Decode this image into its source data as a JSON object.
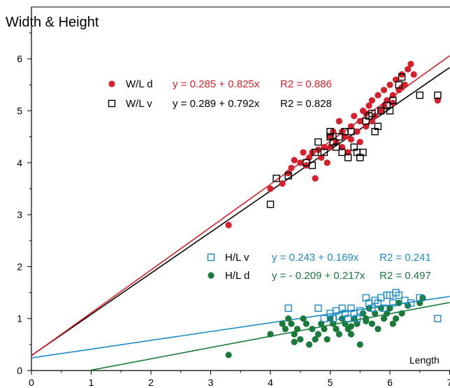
{
  "chart_data": {
    "type": "scatter",
    "title": "",
    "ylabel": "Width & Height",
    "xlabel": "Length",
    "xlim": [
      0,
      7
    ],
    "ylim": [
      0,
      6.5
    ],
    "x_ticks": [
      "0",
      "1",
      "2",
      "3",
      "4",
      "5",
      "6",
      "7"
    ],
    "y_ticks": [
      "0",
      "1",
      "2",
      "3",
      "4",
      "5",
      "6"
    ],
    "grid": false,
    "legend_position": "inside",
    "series": [
      {
        "name": "W/L d",
        "marker": "filled-circle",
        "color": "#d7202b",
        "equation": "y = 0.285 + 0.825x",
        "r2": "R2 = 0.886",
        "fit": {
          "intercept": 0.285,
          "slope": 0.825,
          "x_range": [
            0,
            7
          ]
        },
        "points": [
          [
            3.3,
            2.8
          ],
          [
            4.0,
            3.5
          ],
          [
            4.2,
            3.6
          ],
          [
            4.3,
            3.8
          ],
          [
            4.35,
            3.9
          ],
          [
            4.5,
            4.0
          ],
          [
            4.55,
            4.2
          ],
          [
            4.6,
            3.95
          ],
          [
            4.65,
            4.1
          ],
          [
            4.7,
            4.2
          ],
          [
            4.75,
            3.7
          ],
          [
            4.85,
            4.1
          ],
          [
            4.9,
            4.3
          ],
          [
            4.95,
            4.0
          ],
          [
            5.0,
            4.3
          ],
          [
            5.0,
            4.5
          ],
          [
            5.05,
            4.6
          ],
          [
            5.1,
            4.4
          ],
          [
            5.15,
            4.8
          ],
          [
            5.2,
            4.6
          ],
          [
            5.25,
            4.5
          ],
          [
            5.3,
            4.2
          ],
          [
            5.35,
            4.7
          ],
          [
            5.4,
            4.9
          ],
          [
            5.45,
            4.6
          ],
          [
            5.5,
            4.8
          ],
          [
            5.55,
            5.0
          ],
          [
            5.6,
            4.7
          ],
          [
            5.65,
            5.1
          ],
          [
            5.7,
            5.2
          ],
          [
            5.75,
            4.9
          ],
          [
            5.8,
            5.3
          ],
          [
            5.85,
            5.0
          ],
          [
            5.9,
            5.4
          ],
          [
            5.95,
            5.2
          ],
          [
            6.0,
            5.5
          ],
          [
            6.05,
            5.3
          ],
          [
            6.1,
            5.6
          ],
          [
            6.15,
            5.4
          ],
          [
            6.2,
            5.7
          ],
          [
            6.25,
            5.5
          ],
          [
            6.3,
            5.8
          ],
          [
            6.35,
            5.9
          ],
          [
            6.4,
            5.7
          ],
          [
            6.8,
            5.2
          ],
          [
            5.2,
            4.3
          ],
          [
            5.5,
            4.4
          ],
          [
            5.7,
            4.8
          ],
          [
            5.9,
            5.1
          ],
          [
            4.4,
            4.05
          ],
          [
            4.8,
            4.25
          ],
          [
            5.35,
            4.45
          ],
          [
            5.6,
            4.95
          ],
          [
            6.05,
            5.15
          ],
          [
            6.2,
            5.45
          ]
        ]
      },
      {
        "name": "W/L v",
        "marker": "open-square",
        "color": "#000000",
        "equation": "y = 0.289 + 0.792x",
        "r2": "R2 = 0.828",
        "fit": {
          "intercept": 0.289,
          "slope": 0.792,
          "x_range": [
            0,
            7
          ]
        },
        "points": [
          [
            4.0,
            3.2
          ],
          [
            4.1,
            3.7
          ],
          [
            4.3,
            3.75
          ],
          [
            4.6,
            4.0
          ],
          [
            4.7,
            3.95
          ],
          [
            4.75,
            4.2
          ],
          [
            4.8,
            4.4
          ],
          [
            4.9,
            4.2
          ],
          [
            5.0,
            4.6
          ],
          [
            5.05,
            4.4
          ],
          [
            5.1,
            4.3
          ],
          [
            5.15,
            4.5
          ],
          [
            5.2,
            4.2
          ],
          [
            5.25,
            4.6
          ],
          [
            5.3,
            4.1
          ],
          [
            5.4,
            4.3
          ],
          [
            5.45,
            4.2
          ],
          [
            5.5,
            4.1
          ],
          [
            5.55,
            4.2
          ],
          [
            5.6,
            4.8
          ],
          [
            5.65,
            4.9
          ],
          [
            5.75,
            4.6
          ],
          [
            5.8,
            4.7
          ],
          [
            5.85,
            5.0
          ],
          [
            5.95,
            5.1
          ],
          [
            6.05,
            5.2
          ],
          [
            6.15,
            5.5
          ],
          [
            6.2,
            5.65
          ],
          [
            6.5,
            5.3
          ],
          [
            6.8,
            5.3
          ],
          [
            5.0,
            4.5
          ],
          [
            5.35,
            4.6
          ],
          [
            5.7,
            4.95
          ],
          [
            6.0,
            5.0
          ]
        ]
      },
      {
        "name": "H/L v",
        "marker": "open-square",
        "color": "#1b8bc4",
        "equation": "y =  0.243 + 0.169x",
        "r2": "R2 = 0.241",
        "fit": {
          "intercept": 0.243,
          "slope": 0.169,
          "x_range": [
            0,
            7
          ]
        },
        "points": [
          [
            4.3,
            1.2
          ],
          [
            4.8,
            1.2
          ],
          [
            4.9,
            1.0
          ],
          [
            5.0,
            1.1
          ],
          [
            5.05,
            1.0
          ],
          [
            5.1,
            1.15
          ],
          [
            5.15,
            1.05
          ],
          [
            5.2,
            1.2
          ],
          [
            5.25,
            1.1
          ],
          [
            5.3,
            1.0
          ],
          [
            5.35,
            1.2
          ],
          [
            5.4,
            1.1
          ],
          [
            5.45,
            1.0
          ],
          [
            5.5,
            1.15
          ],
          [
            5.6,
            1.4
          ],
          [
            5.65,
            1.3
          ],
          [
            5.7,
            1.2
          ],
          [
            5.75,
            1.35
          ],
          [
            5.8,
            1.3
          ],
          [
            5.85,
            1.4
          ],
          [
            5.9,
            1.2
          ],
          [
            5.95,
            1.45
          ],
          [
            6.0,
            1.45
          ],
          [
            6.05,
            1.3
          ],
          [
            6.1,
            1.5
          ],
          [
            6.15,
            1.45
          ],
          [
            6.25,
            1.35
          ],
          [
            6.35,
            1.3
          ],
          [
            6.5,
            1.4
          ],
          [
            6.8,
            1.0
          ]
        ]
      },
      {
        "name": "H/L d",
        "marker": "filled-circle",
        "color": "#1a7a3a",
        "equation": "y = - 0.209 + 0.217x",
        "r2": "R2 = 0.497",
        "fit": {
          "intercept": -0.209,
          "slope": 0.217,
          "x_range": [
            0.963,
            7
          ]
        },
        "points": [
          [
            3.3,
            0.3
          ],
          [
            4.0,
            0.7
          ],
          [
            4.2,
            0.9
          ],
          [
            4.25,
            0.8
          ],
          [
            4.3,
            1.0
          ],
          [
            4.35,
            0.9
          ],
          [
            4.4,
            0.7
          ],
          [
            4.45,
            0.8
          ],
          [
            4.5,
            0.6
          ],
          [
            4.55,
            1.0
          ],
          [
            4.6,
            0.9
          ],
          [
            4.65,
            0.5
          ],
          [
            4.7,
            0.8
          ],
          [
            4.75,
            0.6
          ],
          [
            4.8,
            0.7
          ],
          [
            4.85,
            0.9
          ],
          [
            4.9,
            0.8
          ],
          [
            4.95,
            0.6
          ],
          [
            5.0,
            1.0
          ],
          [
            5.05,
            0.9
          ],
          [
            5.1,
            0.8
          ],
          [
            5.15,
            0.7
          ],
          [
            5.2,
            1.0
          ],
          [
            5.25,
            0.9
          ],
          [
            5.3,
            0.8
          ],
          [
            5.35,
            0.7
          ],
          [
            5.4,
            1.0
          ],
          [
            5.45,
            0.9
          ],
          [
            5.5,
            0.5
          ],
          [
            5.55,
            1.1
          ],
          [
            5.6,
            1.0
          ],
          [
            5.65,
            1.2
          ],
          [
            5.7,
            0.9
          ],
          [
            5.75,
            1.1
          ],
          [
            5.8,
            0.8
          ],
          [
            5.85,
            1.2
          ],
          [
            5.9,
            1.0
          ],
          [
            5.95,
            1.1
          ],
          [
            6.0,
            1.2
          ],
          [
            6.05,
            0.9
          ],
          [
            6.1,
            1.0
          ],
          [
            6.15,
            1.3
          ],
          [
            6.2,
            1.1
          ],
          [
            6.3,
            1.25
          ],
          [
            6.5,
            1.3
          ],
          [
            6.55,
            1.4
          ],
          [
            4.4,
            0.55
          ],
          [
            5.35,
            0.85
          ],
          [
            5.6,
            0.95
          ]
        ]
      }
    ]
  }
}
